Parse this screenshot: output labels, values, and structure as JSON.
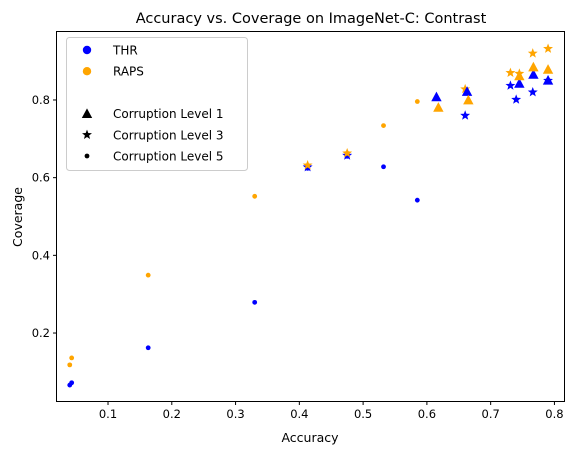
{
  "chart_data": {
    "type": "scatter",
    "title": "Accuracy vs. Coverage on ImageNet-C: Contrast",
    "xlabel": "Accuracy",
    "ylabel": "Coverage",
    "xlim": [
      0.02,
      0.815
    ],
    "ylim": [
      0.025,
      0.975
    ],
    "xticks": [
      0.1,
      0.2,
      0.3,
      0.4,
      0.5,
      0.6,
      0.7,
      0.8
    ],
    "yticks": [
      0.2,
      0.4,
      0.6,
      0.8
    ],
    "xtick_labels": [
      "0.1",
      "0.2",
      "0.3",
      "0.4",
      "0.5",
      "0.6",
      "0.7",
      "0.8"
    ],
    "ytick_labels": [
      "0.2",
      "0.4",
      "0.6",
      "0.8"
    ],
    "grid": false,
    "legend_position": "top-left",
    "colors": {
      "THR": "#0000ff",
      "RAPS": "#ffa500",
      "level": "#000000"
    },
    "legend": [
      {
        "label": "THR",
        "marker": "circle-large",
        "color": "#0000ff"
      },
      {
        "label": "RAPS",
        "marker": "circle-large",
        "color": "#ffa500"
      },
      {
        "label": "",
        "marker": "none",
        "color": ""
      },
      {
        "label": "Corruption Level 1",
        "marker": "triangle",
        "color": "#000000"
      },
      {
        "label": "Corruption Level 3",
        "marker": "star",
        "color": "#000000"
      },
      {
        "label": "Corruption Level 5",
        "marker": "dot",
        "color": "#000000"
      }
    ],
    "series": [
      {
        "method": "THR",
        "level": 1,
        "marker": "triangle",
        "color": "#0000ff",
        "points": [
          [
            0.615,
            0.808
          ],
          [
            0.663,
            0.822
          ],
          [
            0.745,
            0.843
          ],
          [
            0.767,
            0.866
          ],
          [
            0.79,
            0.851
          ]
        ]
      },
      {
        "method": "RAPS",
        "level": 1,
        "marker": "triangle",
        "color": "#ffa500",
        "points": [
          [
            0.618,
            0.781
          ],
          [
            0.665,
            0.8
          ],
          [
            0.745,
            0.862
          ],
          [
            0.767,
            0.885
          ],
          [
            0.79,
            0.879
          ]
        ]
      },
      {
        "method": "THR",
        "level": 3,
        "marker": "star",
        "color": "#0000ff",
        "points": [
          [
            0.413,
            0.627
          ],
          [
            0.475,
            0.657
          ],
          [
            0.66,
            0.76
          ],
          [
            0.731,
            0.837
          ],
          [
            0.74,
            0.801
          ],
          [
            0.766,
            0.82
          ],
          [
            0.79,
            0.85
          ]
        ]
      },
      {
        "method": "RAPS",
        "level": 3,
        "marker": "star",
        "color": "#ffa500",
        "points": [
          [
            0.413,
            0.632
          ],
          [
            0.475,
            0.663
          ],
          [
            0.66,
            0.828
          ],
          [
            0.731,
            0.87
          ],
          [
            0.745,
            0.868
          ],
          [
            0.766,
            0.92
          ],
          [
            0.79,
            0.932
          ]
        ]
      },
      {
        "method": "THR",
        "level": 5,
        "marker": "dot",
        "color": "#0000ff",
        "points": [
          [
            0.04,
            0.066
          ],
          [
            0.043,
            0.072
          ],
          [
            0.163,
            0.162
          ],
          [
            0.33,
            0.279
          ],
          [
            0.413,
            0.624
          ],
          [
            0.475,
            0.655
          ],
          [
            0.532,
            0.628
          ],
          [
            0.585,
            0.542
          ]
        ]
      },
      {
        "method": "RAPS",
        "level": 5,
        "marker": "dot",
        "color": "#ffa500",
        "points": [
          [
            0.04,
            0.118
          ],
          [
            0.043,
            0.136
          ],
          [
            0.163,
            0.349
          ],
          [
            0.33,
            0.552
          ],
          [
            0.413,
            0.63
          ],
          [
            0.475,
            0.663
          ],
          [
            0.532,
            0.734
          ],
          [
            0.585,
            0.796
          ]
        ]
      }
    ]
  }
}
